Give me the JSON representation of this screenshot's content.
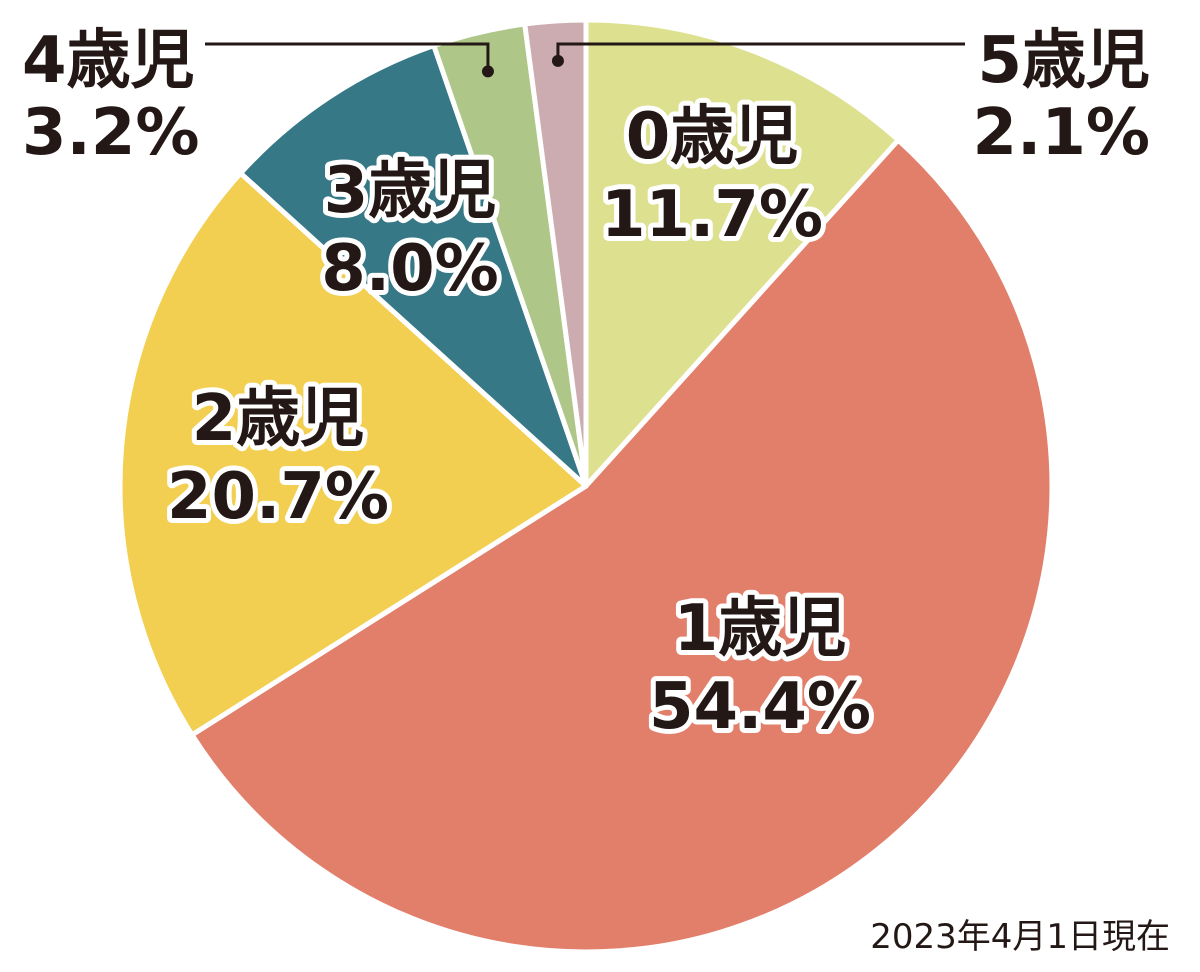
{
  "chart_data": {
    "type": "pie",
    "start_angle": "top",
    "direction": "clockwise",
    "slices": [
      {
        "label": "0歳児",
        "value": 11.7,
        "value_text": "11.7%",
        "color": "#dde08f"
      },
      {
        "label": "1歳児",
        "value": 54.4,
        "value_text": "54.4%",
        "color": "#e27f6a"
      },
      {
        "label": "2歳児",
        "value": 20.7,
        "value_text": "20.7%",
        "color": "#f2cf51"
      },
      {
        "label": "3歳児",
        "value": 8.0,
        "value_text": "8.0%",
        "color": "#367886"
      },
      {
        "label": "4歳児",
        "value": 3.2,
        "value_text": "3.2%",
        "color": "#aec789"
      },
      {
        "label": "5歳児",
        "value": 2.1,
        "value_text": "2.1%",
        "color": "#cdacb1"
      }
    ],
    "note": "2023年4月1日現在"
  }
}
